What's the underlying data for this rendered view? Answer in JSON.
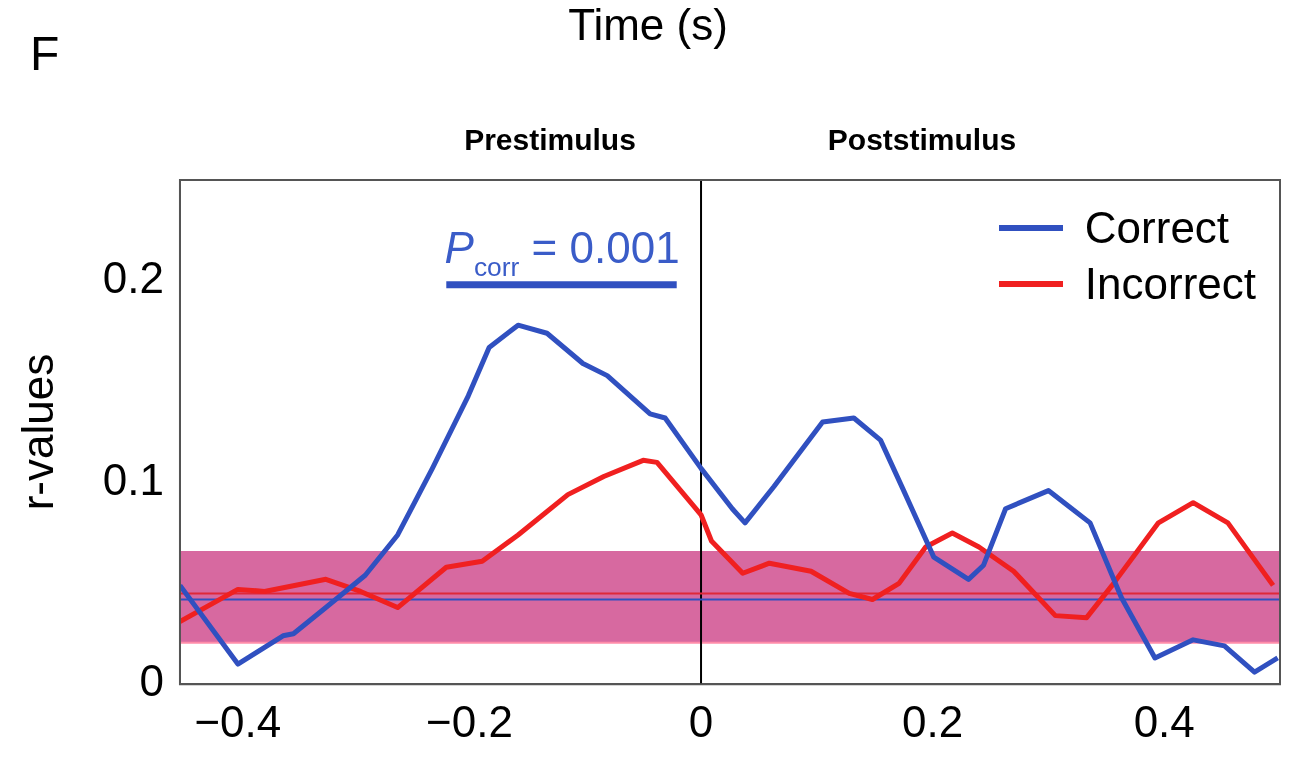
{
  "chart_data": {
    "type": "line",
    "ylabel": "r-values",
    "legend": "top right",
    "grid": false,
    "marker": "none",
    "line_style": "solid",
    "xlim": [
      -0.45,
      0.5
    ],
    "xticks": [
      -0.4,
      -0.2,
      0,
      0.2,
      0.4
    ],
    "ylim": [
      0,
      0.25
    ],
    "yticks": [
      0,
      0.1,
      0.2
    ],
    "annotations": [
      "F",
      "Time (s)",
      "Prestimulus",
      "Poststimulus",
      {
        "text": "P$_{corr}$ = 0.001",
        "x": -0.12,
        "y": 0.198
      }
    ],
    "ref_lines": [
      {
        "axis": "x",
        "value": 0,
        "color": "#000000"
      },
      {
        "axis": "y",
        "value": 0.042,
        "color": "#3050c0"
      },
      {
        "axis": "y",
        "value": 0.045,
        "color": "#e02838"
      }
    ],
    "bands": [
      {
        "axis": "y",
        "from": 0.021,
        "to": 0.066,
        "color": "#5a6fd8"
      },
      {
        "axis": "y",
        "from": 0.02,
        "to": 0.066,
        "color": "#ff4070"
      }
    ],
    "series": [
      {
        "name": "Correct",
        "color": "#3050c0",
        "x": [
          -0.45,
          -0.4,
          -0.361,
          -0.352,
          -0.324,
          -0.29,
          -0.262,
          -0.232,
          -0.201,
          -0.183,
          -0.158,
          -0.133,
          -0.102,
          -0.081,
          -0.044,
          -0.031,
          0,
          0.027,
          0.038,
          0.063,
          0.105,
          0.132,
          0.155,
          0.175,
          0.201,
          0.231,
          0.244,
          0.263,
          0.3,
          0.336,
          0.363,
          0.392,
          0.425,
          0.452,
          0.478,
          0.498
        ],
        "values": [
          0.049,
          0.01,
          0.024,
          0.025,
          0.038,
          0.054,
          0.074,
          0.107,
          0.143,
          0.167,
          0.178,
          0.174,
          0.159,
          0.153,
          0.134,
          0.132,
          0.107,
          0.087,
          0.08,
          0.098,
          0.13,
          0.132,
          0.121,
          0.096,
          0.063,
          0.052,
          0.059,
          0.087,
          0.096,
          0.08,
          0.043,
          0.013,
          0.022,
          0.019,
          0.006,
          0.013
        ]
      },
      {
        "name": "Incorrect",
        "color": "#f02020",
        "x": [
          -0.45,
          -0.4,
          -0.377,
          -0.324,
          -0.294,
          -0.262,
          -0.22,
          -0.189,
          -0.158,
          -0.115,
          -0.084,
          -0.05,
          -0.038,
          0,
          0.009,
          0.036,
          0.059,
          0.095,
          0.128,
          0.148,
          0.171,
          0.194,
          0.217,
          0.24,
          0.27,
          0.306,
          0.333,
          0.355,
          0.395,
          0.425,
          0.455,
          0.494
        ],
        "values": [
          0.031,
          0.047,
          0.046,
          0.052,
          0.046,
          0.038,
          0.058,
          0.061,
          0.074,
          0.094,
          0.103,
          0.111,
          0.11,
          0.084,
          0.071,
          0.055,
          0.06,
          0.056,
          0.045,
          0.042,
          0.05,
          0.068,
          0.075,
          0.068,
          0.056,
          0.034,
          0.033,
          0.049,
          0.08,
          0.09,
          0.08,
          0.049
        ]
      },
      {
        "type": "line",
        "color": "#3050c0",
        "x": [
          -0.22,
          -0.021
        ],
        "values": [
          0.198,
          0.198
        ]
      }
    ]
  }
}
